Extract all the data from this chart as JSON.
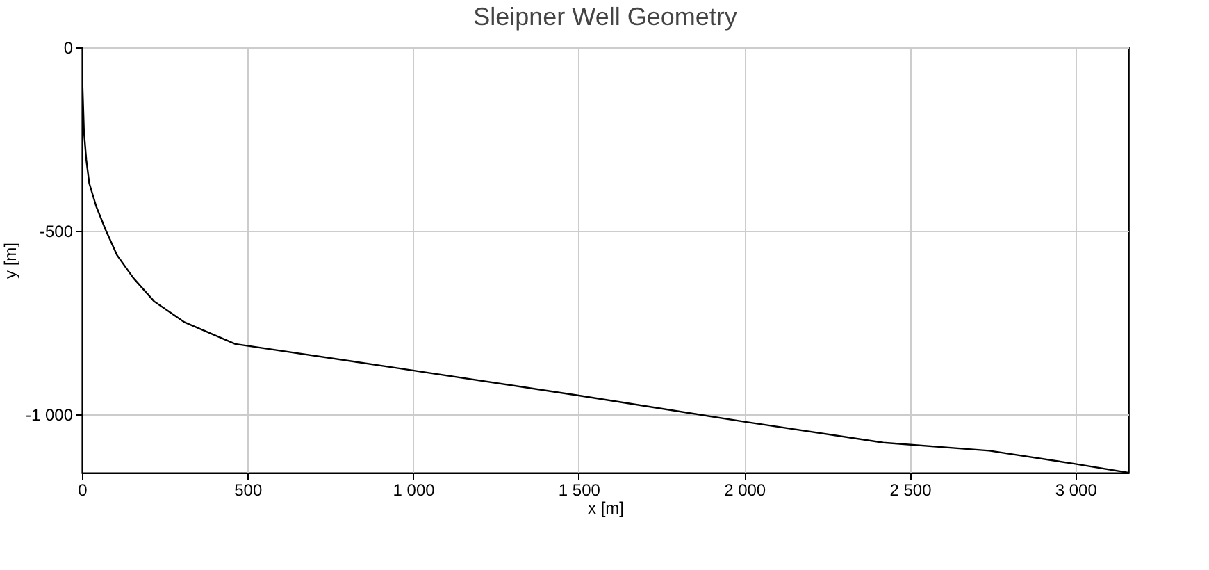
{
  "chart_data": {
    "type": "line",
    "title": "Sleipner Well Geometry",
    "xlabel": "x [m]",
    "ylabel": "y [m]",
    "x": [
      0,
      6,
      13,
      22,
      43,
      71,
      106,
      155,
      218,
      310,
      463,
      954,
      1504,
      2000,
      2420,
      2740,
      3000,
      3160
    ],
    "series": [
      {
        "color": "#000000",
        "values": [
          -60,
          -230,
          -307,
          -371,
          -434,
          -497,
          -567,
          -629,
          -693,
          -750,
          -809,
          -875,
          -950,
          -1021,
          -1078,
          -1100,
          -1136,
          -1160
        ]
      }
    ],
    "xlim": [
      0,
      3160
    ],
    "ylim": [
      -1160,
      0
    ],
    "xticks": [
      0,
      500,
      {
        "value": 1000,
        "label": "1 000"
      },
      {
        "value": 1500,
        "label": "1 500"
      },
      {
        "value": 2000,
        "label": "2 000"
      },
      {
        "value": 2500,
        "label": "2 500"
      },
      {
        "value": 3000,
        "label": "3 000"
      }
    ],
    "yticks": [
      0,
      -500,
      {
        "value": -1000,
        "label": "-1 000"
      }
    ],
    "grid": true,
    "marker": "none",
    "line_style": "solid"
  }
}
